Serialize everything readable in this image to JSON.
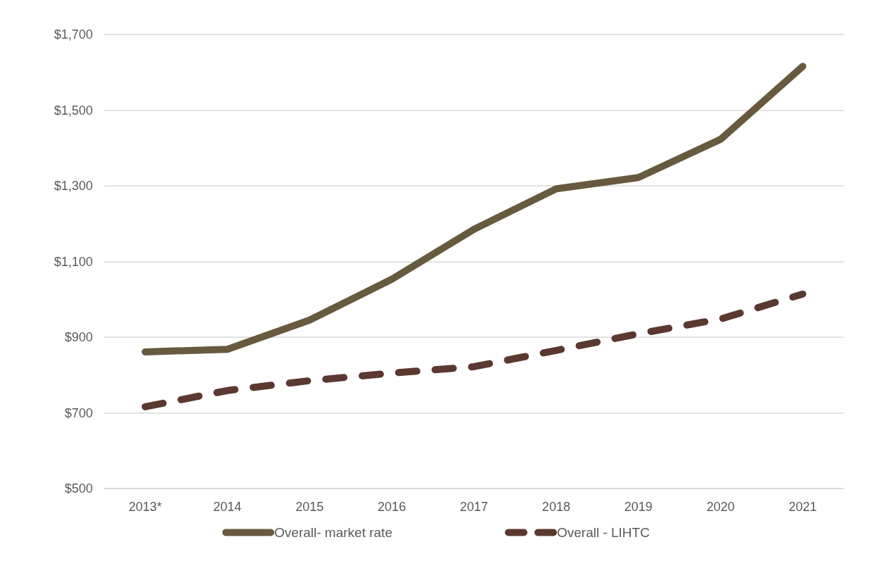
{
  "chart_data": {
    "type": "line",
    "categories": [
      "2013*",
      "2014",
      "2015",
      "2016",
      "2017",
      "2018",
      "2019",
      "2020",
      "2021"
    ],
    "series": [
      {
        "name": "Overall- market rate",
        "color": "#675a3e",
        "line_style": "solid",
        "values": [
          861,
          868,
          945,
          1053,
          1185,
          1292,
          1322,
          1423,
          1616
        ]
      },
      {
        "name": "Overall - LIHTC",
        "color": "#5b3830",
        "line_style": "dashed",
        "values": [
          716,
          759,
          785,
          805,
          822,
          865,
          909,
          948,
          1014
        ]
      }
    ],
    "ylim": [
      500,
      1700
    ],
    "yticks": [
      {
        "value": 500,
        "label": "$500"
      },
      {
        "value": 700,
        "label": "$700"
      },
      {
        "value": 900,
        "label": "$900"
      },
      {
        "value": 1100,
        "label": "$1,100"
      },
      {
        "value": 1300,
        "label": "$1,300"
      },
      {
        "value": 1500,
        "label": "$1,500"
      },
      {
        "value": 1700,
        "label": "$1,700"
      }
    ],
    "grid": "y",
    "legend": "bottom",
    "marker": "none"
  }
}
